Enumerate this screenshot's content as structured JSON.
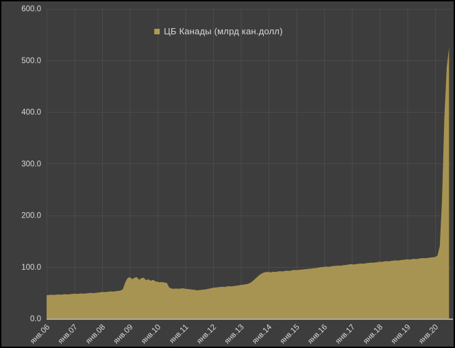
{
  "window": {
    "background_color": "#3d3d3d",
    "border_color": "#000000"
  },
  "chart_data": {
    "type": "area",
    "title": "",
    "legend": {
      "label": "ЦБ Канады (млрд кан.долл)",
      "position": "top-center",
      "marker_color": "#b29a52"
    },
    "colors": {
      "area_fill": "#a89452",
      "plot_background": "#3d3d3d",
      "gridline": "#4a4a4a",
      "tick_text": "#d9d9d9",
      "axis_line": "#cfcdcd"
    },
    "grid": true,
    "ylim": [
      0,
      600
    ],
    "y_tick_step": 100,
    "y_tick_labels": [
      "0.0",
      "100.0",
      "200.0",
      "300.0",
      "400.0",
      "500.0",
      "600.0"
    ],
    "x_tick_labels": [
      "янв.06",
      "янв.07",
      "янв.08",
      "янв.09",
      "янв.10",
      "янв.11",
      "янв.12",
      "янв.13",
      "янв.14",
      "янв.15",
      "янв.16",
      "янв.17",
      "янв.18",
      "янв.19",
      "янв.20"
    ],
    "x_label_rotation_deg": -45,
    "series": [
      {
        "name": "ЦБ Канады (млрд кан.долл)",
        "frequency": "monthly",
        "start_label": "янв.06",
        "points_per_year": 12,
        "values": [
          45,
          45.5,
          46,
          45.5,
          46,
          46.5,
          46,
          46.5,
          47,
          46.5,
          47,
          47.5,
          48,
          47.5,
          48,
          48.5,
          48,
          48.5,
          49,
          49.5,
          49,
          49.5,
          50,
          50.5,
          51.5,
          51,
          51.5,
          52,
          52.5,
          52,
          53,
          53.5,
          54,
          57,
          70,
          78,
          80,
          76,
          79,
          80,
          75,
          78,
          79,
          74,
          76,
          73,
          75,
          72,
          71,
          70,
          70.5,
          69.5,
          69,
          60,
          58,
          57.5,
          58,
          57.5,
          58,
          58.5,
          57.5,
          57,
          56.5,
          56,
          55.5,
          54.5,
          55,
          55.5,
          56,
          56.5,
          57.5,
          58.5,
          59.5,
          60,
          60.5,
          61,
          61.5,
          61,
          62,
          62.5,
          62,
          63,
          63.5,
          64,
          65,
          65.5,
          66,
          67,
          69,
          72,
          76,
          80,
          84,
          87,
          89,
          90,
          90,
          89.5,
          90.5,
          90,
          91,
          91.5,
          91,
          92,
          92.5,
          92,
          93,
          94,
          93.5,
          94,
          94.5,
          95,
          95.5,
          96,
          96.5,
          97,
          97.5,
          98,
          99,
          99.5,
          100,
          100.5,
          100,
          101,
          101.5,
          102,
          102.5,
          102,
          103,
          103.5,
          104,
          105,
          105,
          104.5,
          105.5,
          106,
          106.5,
          106,
          107,
          107.5,
          108,
          108,
          108.5,
          109,
          110,
          109.5,
          110.5,
          111,
          110.5,
          111.5,
          112,
          112.5,
          112,
          113,
          113.5,
          114,
          114.5,
          114,
          115,
          115.5,
          115,
          116,
          116.5,
          117,
          116.5,
          117.5,
          118,
          118.5,
          119,
          122,
          140,
          230,
          390,
          485,
          525
        ]
      }
    ]
  }
}
